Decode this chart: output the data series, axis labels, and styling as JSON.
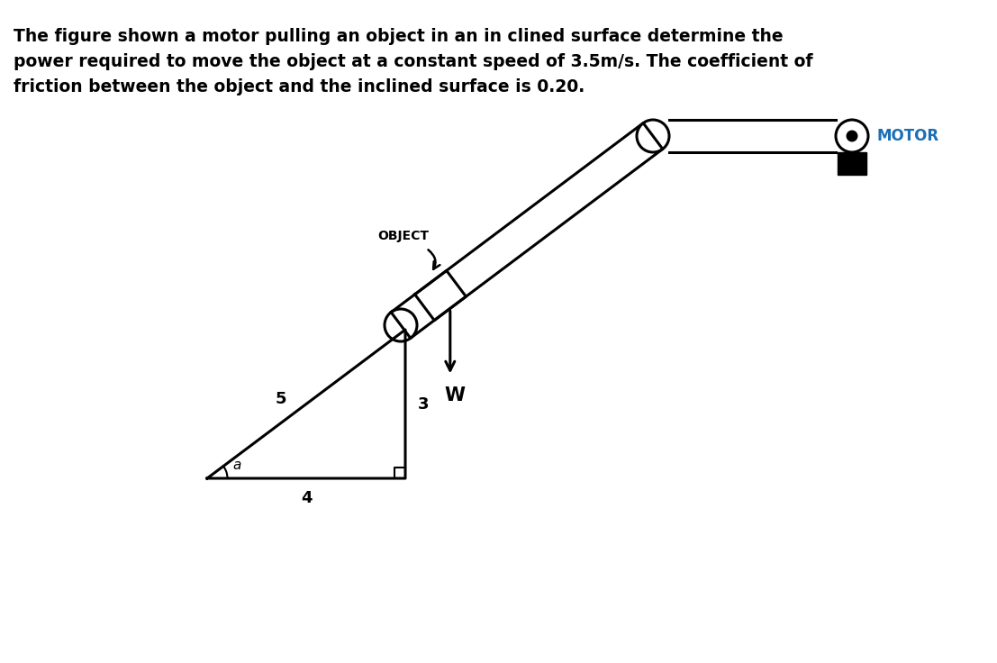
{
  "title_text": "The figure shown a motor pulling an object in an in clined surface determine the\npower required to move the object at a constant speed of 3.5m/s. The coefficient of\nfriction between the object and the inclined surface is 0.20.",
  "title_fontsize": 13.5,
  "bg_color": "#ffffff",
  "line_color": "#000000",
  "motor_label": "MOTOR",
  "motor_label_color": "#1a6fb5",
  "object_label": "OBJECT",
  "w_label": "W",
  "label_5": "5",
  "label_4": "4",
  "label_3": "3",
  "label_theta": "a",
  "incline_sin": 0.6,
  "incline_cos": 0.8
}
